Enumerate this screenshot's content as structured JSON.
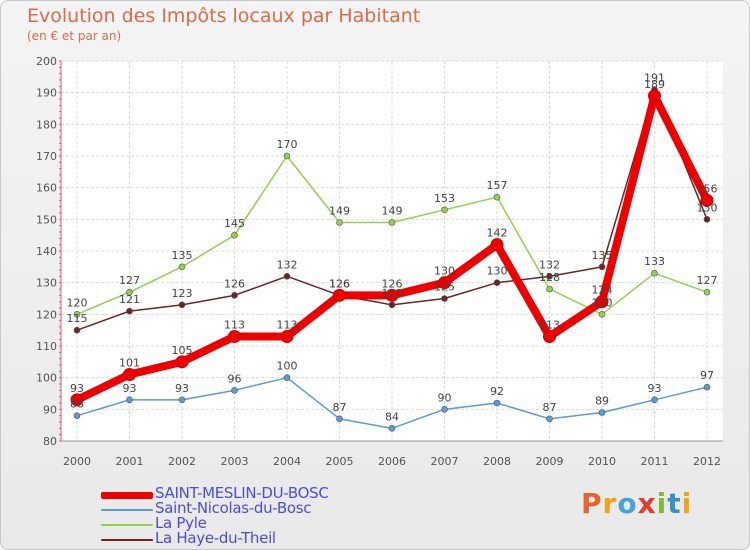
{
  "header": {
    "title": "Evolution des Impôts locaux par Habitant",
    "subtitle": "(en € et par an)"
  },
  "logo": {
    "text": "Proxiti",
    "colors": [
      "#e8632b",
      "#f2a416",
      "#47a3d6",
      "#e63a2a",
      "#82b83a",
      "#3b8ec9",
      "#f2a416"
    ]
  },
  "chart_data": {
    "type": "line",
    "title": "Evolution des Impôts locaux par Habitant",
    "subtitle": "(en € et par an)",
    "xlabel": "",
    "ylabel": "",
    "ylim": [
      80,
      200
    ],
    "yticks": [
      80,
      90,
      100,
      110,
      120,
      130,
      140,
      150,
      160,
      170,
      180,
      190,
      200
    ],
    "grid": true,
    "legend_position": "bottom-left",
    "categories": [
      "2000",
      "2001",
      "2002",
      "2003",
      "2004",
      "2005",
      "2006",
      "2007",
      "2008",
      "2009",
      "2010",
      "2011",
      "2012"
    ],
    "series": [
      {
        "name": "SAINT-MESLIN-DU-BOSC",
        "color": "#ee0000",
        "values": [
          93,
          101,
          105,
          113,
          113,
          126,
          126,
          130,
          142,
          113,
          124,
          189,
          156
        ],
        "labels": [
          "93",
          "101",
          "105",
          "113",
          "113",
          "126",
          "126",
          "130",
          "142",
          "113",
          "124",
          "189",
          "156"
        ]
      },
      {
        "name": "Saint-Nicolas-du-Bosc",
        "color": "#5b9bd5",
        "values": [
          88,
          93,
          93,
          96,
          100,
          87,
          84,
          90,
          92,
          87,
          89,
          93,
          97
        ],
        "labels": [
          "88",
          "93",
          "93",
          "96",
          "100",
          "87",
          "84",
          "90",
          "92",
          "87",
          "89",
          "93",
          "97"
        ]
      },
      {
        "name": "La Pyle",
        "color": "#92d050",
        "values": [
          120,
          127,
          135,
          145,
          170,
          149,
          149,
          153,
          157,
          128,
          120,
          133,
          127
        ],
        "labels": [
          "120",
          "127",
          "135",
          "145",
          "170",
          "149",
          "149",
          "153",
          "157",
          "128",
          "120",
          "133",
          "127"
        ]
      },
      {
        "name": "La Haye-du-Theil",
        "color": "#6b2525",
        "values": [
          115,
          121,
          123,
          126,
          132,
          126,
          123,
          125,
          130,
          132,
          135,
          191,
          150
        ],
        "labels": [
          "115",
          "121",
          "123",
          "126",
          "132",
          "126",
          "123",
          "125",
          "130",
          "132",
          "135",
          "191",
          "150"
        ]
      }
    ]
  }
}
